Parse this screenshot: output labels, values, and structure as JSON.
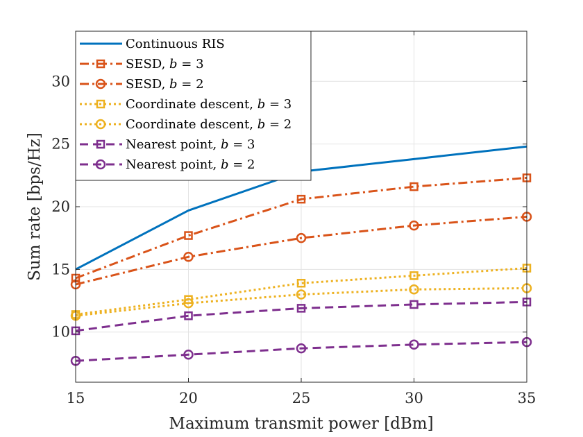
{
  "chart_data": {
    "type": "line",
    "title": "",
    "xlabel": "Maximum transmit power [dBm]",
    "ylabel": "Sum rate [bps/Hz]",
    "x": [
      15,
      20,
      25,
      30,
      35
    ],
    "xlim": [
      15,
      35
    ],
    "ylim": [
      6,
      34
    ],
    "xticks": [
      "15",
      "20",
      "25",
      "30",
      "35"
    ],
    "yticks": [
      "10",
      "15",
      "20",
      "25",
      "30"
    ],
    "grid": true,
    "legend_position": "top-left",
    "series": [
      {
        "name": "Continuous RIS",
        "color": "#0072BD",
        "style": "solid",
        "marker": "none",
        "values": [
          15.0,
          19.7,
          22.8,
          23.8,
          24.8
        ]
      },
      {
        "name": "SESD, b = 3",
        "label_main": "SESD, ",
        "label_var": "b",
        "label_rest": " = 3",
        "color": "#D95319",
        "style": "dashdot",
        "marker": "square",
        "values": [
          14.3,
          17.7,
          20.6,
          21.6,
          22.3
        ]
      },
      {
        "name": "SESD, b = 2",
        "label_main": "SESD, ",
        "label_var": "b",
        "label_rest": " = 2",
        "color": "#D95319",
        "style": "dashdot",
        "marker": "circle",
        "values": [
          13.8,
          16.0,
          17.5,
          18.5,
          19.2
        ]
      },
      {
        "name": "Coordinate descent, b = 3",
        "label_main": "Coordinate descent, ",
        "label_var": "b",
        "label_rest": " = 3",
        "color": "#EDB120",
        "style": "dotted",
        "marker": "square",
        "values": [
          11.4,
          12.6,
          13.9,
          14.5,
          15.1
        ]
      },
      {
        "name": "Coordinate descent, b = 2",
        "label_main": "Coordinate descent, ",
        "label_var": "b",
        "label_rest": " = 2",
        "color": "#EDB120",
        "style": "dotted",
        "marker": "circle",
        "values": [
          11.3,
          12.3,
          13.0,
          13.4,
          13.5
        ]
      },
      {
        "name": "Nearest point, b = 3",
        "label_main": "Nearest point, ",
        "label_var": "b",
        "label_rest": " = 3",
        "color": "#7E2F8E",
        "style": "dashed",
        "marker": "square",
        "values": [
          10.1,
          11.3,
          11.9,
          12.2,
          12.4
        ]
      },
      {
        "name": "Nearest point, b = 2",
        "label_main": "Nearest point, ",
        "label_var": "b",
        "label_rest": " = 2",
        "color": "#7E2F8E",
        "style": "dashed",
        "marker": "circle",
        "values": [
          7.7,
          8.2,
          8.7,
          9.0,
          9.2
        ]
      }
    ]
  }
}
